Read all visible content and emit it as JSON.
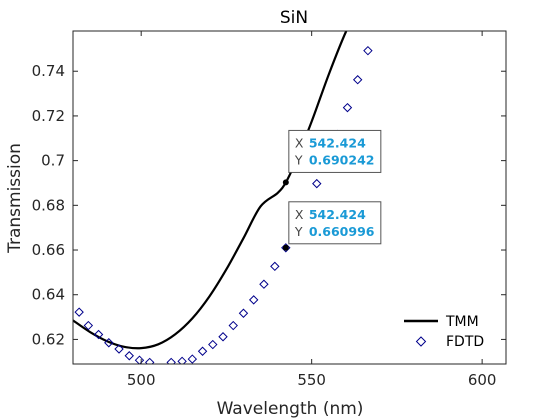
{
  "chart_data": {
    "type": "line",
    "title": "SiN",
    "xlabel": "Wavelength (nm)",
    "ylabel": "Transmission",
    "xlim": [
      480,
      607
    ],
    "ylim": [
      0.609,
      0.758
    ],
    "xticks": [
      500,
      550,
      600
    ],
    "yticks": [
      0.62,
      0.64,
      0.66,
      0.68,
      0.7,
      0.72,
      0.74
    ],
    "xtick_labels": [
      "500",
      "550",
      "600"
    ],
    "ytick_labels": [
      "0.62",
      "0.64",
      "0.66",
      "0.68",
      "0.7",
      "0.72",
      "0.74"
    ],
    "grid": false,
    "legend_position": "bottom-right",
    "series": [
      {
        "name": "TMM",
        "style": "line",
        "color": "#000000",
        "x": [
          480,
          485,
          490,
          495,
          500,
          505,
          510,
          515,
          520,
          525,
          530,
          535,
          540,
          542.424,
          545,
          550,
          555,
          560,
          561
        ],
        "y": [
          0.6285,
          0.6233,
          0.6192,
          0.6167,
          0.6161,
          0.6178,
          0.6223,
          0.6294,
          0.6392,
          0.6514,
          0.6653,
          0.6795,
          0.6855,
          0.690242,
          0.6985,
          0.7175,
          0.7385,
          0.7575,
          0.759
        ]
      },
      {
        "name": "FDTD",
        "style": "marker",
        "marker": "diamond",
        "color": "#00008b",
        "x": [
          481.8,
          484.5,
          487.5,
          490.5,
          493.5,
          496.5,
          499.5,
          502.5,
          508.8,
          512,
          515,
          518,
          521,
          524,
          527,
          530,
          533,
          536,
          539.2,
          542.424,
          545.5,
          548.5,
          551.5,
          554.5,
          557.5,
          560.5,
          563.5,
          566.5
        ],
        "y": [
          0.6322,
          0.6262,
          0.6222,
          0.6185,
          0.6157,
          0.6127,
          0.6107,
          0.6097,
          0.6097,
          0.6102,
          0.6112,
          0.6147,
          0.6177,
          0.6212,
          0.6262,
          0.6317,
          0.6377,
          0.6447,
          0.6527,
          0.660996,
          0.6697,
          0.6792,
          0.6897,
          0.7002,
          0.7117,
          0.7237,
          0.7362,
          0.7492
        ]
      }
    ],
    "datatips": [
      {
        "series": "TMM",
        "x_label": "X",
        "y_label": "Y",
        "x_text": "542.424",
        "y_text": "0.690242",
        "x": 542.424,
        "y": 0.690242
      },
      {
        "series": "FDTD",
        "x_label": "X",
        "y_label": "Y",
        "x_text": "542.424",
        "y_text": "0.660996",
        "x": 542.424,
        "y": 0.660996
      }
    ]
  }
}
